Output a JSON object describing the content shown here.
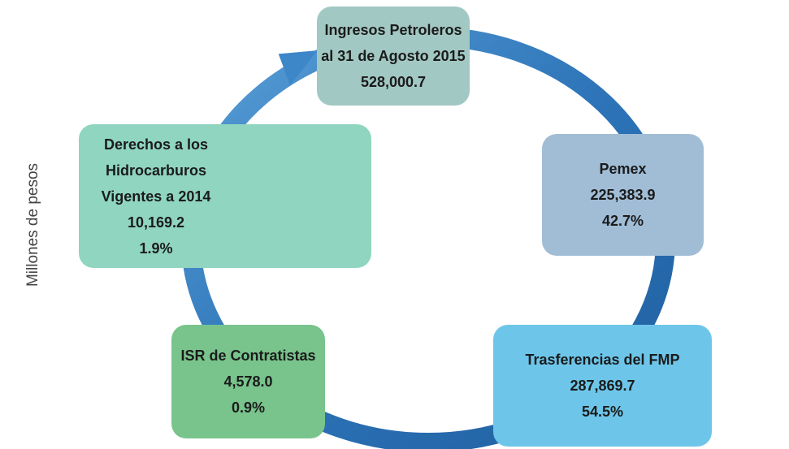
{
  "side_label": "Millones de pesos",
  "nodes": [
    {
      "lines": [
        "Ingresos Petroleros",
        "al 31 de Agosto 2015",
        "528,000.7"
      ]
    },
    {
      "lines": [
        "Pemex",
        "225,383.9",
        "42.7%"
      ]
    },
    {
      "lines": [
        "Trasferencias del FMP",
        "287,869.7",
        "54.5%"
      ]
    },
    {
      "lines": [
        "ISR de Contratistas",
        "4,578.0",
        "0.9%"
      ]
    },
    {
      "lines": [
        "Derechos a los",
        "Hidrocarburos",
        "Vigentes a 2014",
        "10,169.2",
        "1.9%"
      ]
    }
  ]
}
